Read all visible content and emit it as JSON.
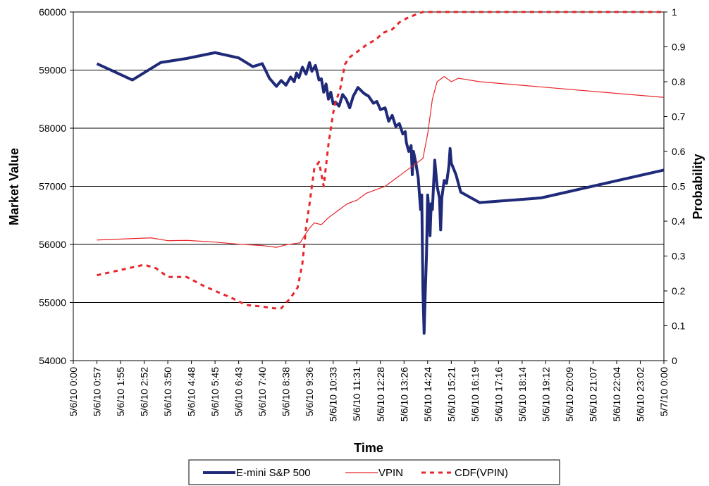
{
  "chart_data": {
    "type": "line",
    "xlabel": "Time",
    "ylabel_left": "Market Value",
    "ylabel_right": "Probability",
    "x_ticks": [
      "5/6/10 0:00",
      "5/6/10 0:57",
      "5/6/10 1:55",
      "5/6/10 2:52",
      "5/6/10 3:50",
      "5/6/10 4:48",
      "5/6/10 5:45",
      "5/6/10 6:43",
      "5/6/10 7:40",
      "5/6/10 8:38",
      "5/6/10 9:36",
      "5/6/10 10:33",
      "5/6/10 11:31",
      "5/6/10 12:28",
      "5/6/10 13:26",
      "5/6/10 14:24",
      "5/6/10 15:21",
      "5/6/10 16:19",
      "5/6/10 17:16",
      "5/6/10 18:14",
      "5/6/10 19:12",
      "5/6/10 20:09",
      "5/6/10 21:07",
      "5/6/10 22:04",
      "5/6/10 23:02",
      "5/7/10 0:00"
    ],
    "y_left_ticks": [
      54000,
      55000,
      56000,
      57000,
      58000,
      59000,
      60000
    ],
    "y_left_lim": [
      54000,
      60000
    ],
    "y_right_ticks": [
      0,
      0.1,
      0.2,
      0.3,
      0.4,
      0.5,
      0.6,
      0.7,
      0.8,
      0.9,
      1
    ],
    "y_right_lim": [
      0,
      1
    ],
    "grid": "horizontal",
    "legend_position": "bottom",
    "series": [
      {
        "name": "E-mini S&P 500",
        "axis": "left",
        "color": "#1f2a78",
        "style": "thick",
        "points": [
          [
            1.0,
            59110
          ],
          [
            2.5,
            58830
          ],
          [
            3.7,
            59130
          ],
          [
            4.8,
            59200
          ],
          [
            6.0,
            59300
          ],
          [
            7.0,
            59210
          ],
          [
            7.6,
            59060
          ],
          [
            8.0,
            59110
          ],
          [
            8.3,
            58860
          ],
          [
            8.6,
            58720
          ],
          [
            8.8,
            58820
          ],
          [
            9.0,
            58740
          ],
          [
            9.2,
            58880
          ],
          [
            9.35,
            58800
          ],
          [
            9.45,
            58950
          ],
          [
            9.55,
            58870
          ],
          [
            9.7,
            59050
          ],
          [
            9.85,
            58930
          ],
          [
            10.0,
            59130
          ],
          [
            10.1,
            58980
          ],
          [
            10.25,
            59080
          ],
          [
            10.4,
            58830
          ],
          [
            10.5,
            58850
          ],
          [
            10.6,
            58620
          ],
          [
            10.7,
            58760
          ],
          [
            10.8,
            58500
          ],
          [
            10.9,
            58620
          ],
          [
            11.0,
            58420
          ],
          [
            11.1,
            58450
          ],
          [
            11.25,
            58380
          ],
          [
            11.4,
            58580
          ],
          [
            11.55,
            58500
          ],
          [
            11.7,
            58350
          ],
          [
            11.85,
            58550
          ],
          [
            12.05,
            58700
          ],
          [
            12.3,
            58600
          ],
          [
            12.5,
            58550
          ],
          [
            12.7,
            58430
          ],
          [
            12.85,
            58460
          ],
          [
            13.0,
            58320
          ],
          [
            13.2,
            58350
          ],
          [
            13.35,
            58120
          ],
          [
            13.5,
            58220
          ],
          [
            13.65,
            58030
          ],
          [
            13.8,
            58080
          ],
          [
            13.95,
            57900
          ],
          [
            14.05,
            57940
          ],
          [
            14.1,
            57750
          ],
          [
            14.2,
            57600
          ],
          [
            14.3,
            57700
          ],
          [
            14.35,
            57200
          ],
          [
            14.4,
            57600
          ],
          [
            14.5,
            57400
          ],
          [
            14.6,
            57150
          ],
          [
            14.7,
            56600
          ],
          [
            14.75,
            56850
          ],
          [
            14.8,
            55200
          ],
          [
            14.85,
            54470
          ],
          [
            14.9,
            55200
          ],
          [
            14.95,
            55800
          ],
          [
            15.0,
            56850
          ],
          [
            15.05,
            56600
          ],
          [
            15.1,
            56150
          ],
          [
            15.15,
            56700
          ],
          [
            15.2,
            56600
          ],
          [
            15.3,
            57450
          ],
          [
            15.4,
            57000
          ],
          [
            15.5,
            56800
          ],
          [
            15.55,
            56250
          ],
          [
            15.6,
            56800
          ],
          [
            15.7,
            57100
          ],
          [
            15.8,
            57050
          ],
          [
            15.9,
            57350
          ],
          [
            15.95,
            57650
          ],
          [
            16.0,
            57400
          ],
          [
            16.1,
            57300
          ],
          [
            16.2,
            57200
          ],
          [
            16.3,
            57050
          ],
          [
            16.4,
            56900
          ],
          [
            17.2,
            56720
          ],
          [
            19.8,
            56800
          ],
          [
            25.0,
            57280
          ]
        ]
      },
      {
        "name": "VPIN",
        "axis": "right",
        "color": "#e8262a",
        "style": "thin",
        "points": [
          [
            1.0,
            0.346
          ],
          [
            2.5,
            0.35
          ],
          [
            3.3,
            0.352
          ],
          [
            4.0,
            0.344
          ],
          [
            4.8,
            0.345
          ],
          [
            6.0,
            0.34
          ],
          [
            7.0,
            0.334
          ],
          [
            8.0,
            0.33
          ],
          [
            8.6,
            0.325
          ],
          [
            9.0,
            0.332
          ],
          [
            9.6,
            0.338
          ],
          [
            9.8,
            0.36
          ],
          [
            10.0,
            0.38
          ],
          [
            10.2,
            0.395
          ],
          [
            10.5,
            0.39
          ],
          [
            10.8,
            0.41
          ],
          [
            11.2,
            0.43
          ],
          [
            11.6,
            0.45
          ],
          [
            12.0,
            0.46
          ],
          [
            12.4,
            0.48
          ],
          [
            12.8,
            0.49
          ],
          [
            13.2,
            0.5
          ],
          [
            13.6,
            0.52
          ],
          [
            14.0,
            0.54
          ],
          [
            14.4,
            0.56
          ],
          [
            14.8,
            0.58
          ],
          [
            15.0,
            0.65
          ],
          [
            15.2,
            0.75
          ],
          [
            15.4,
            0.8
          ],
          [
            15.7,
            0.815
          ],
          [
            16.0,
            0.8
          ],
          [
            16.3,
            0.81
          ],
          [
            17.2,
            0.8
          ],
          [
            19.8,
            0.785
          ],
          [
            25.0,
            0.755
          ]
        ]
      },
      {
        "name": "CDF(VPIN)",
        "axis": "right",
        "color": "#e8262a",
        "style": "dashed",
        "points": [
          [
            1.0,
            0.245
          ],
          [
            2.0,
            0.26
          ],
          [
            3.0,
            0.275
          ],
          [
            3.5,
            0.265
          ],
          [
            4.0,
            0.24
          ],
          [
            4.8,
            0.24
          ],
          [
            5.5,
            0.215
          ],
          [
            6.0,
            0.2
          ],
          [
            6.7,
            0.18
          ],
          [
            7.3,
            0.16
          ],
          [
            8.0,
            0.155
          ],
          [
            8.5,
            0.15
          ],
          [
            8.8,
            0.15
          ],
          [
            9.2,
            0.18
          ],
          [
            9.5,
            0.21
          ],
          [
            9.7,
            0.28
          ],
          [
            9.85,
            0.38
          ],
          [
            10.0,
            0.45
          ],
          [
            10.2,
            0.55
          ],
          [
            10.4,
            0.57
          ],
          [
            10.6,
            0.5
          ],
          [
            10.8,
            0.62
          ],
          [
            11.0,
            0.71
          ],
          [
            11.1,
            0.74
          ],
          [
            11.3,
            0.78
          ],
          [
            11.5,
            0.85
          ],
          [
            11.7,
            0.87
          ],
          [
            11.9,
            0.88
          ],
          [
            12.1,
            0.89
          ],
          [
            12.5,
            0.91
          ],
          [
            12.8,
            0.92
          ],
          [
            13.1,
            0.94
          ],
          [
            13.5,
            0.95
          ],
          [
            13.8,
            0.97
          ],
          [
            14.2,
            0.985
          ],
          [
            14.8,
            1.0
          ],
          [
            16.0,
            1.0
          ],
          [
            18.0,
            1.0
          ],
          [
            20.0,
            1.0
          ],
          [
            22.0,
            1.0
          ],
          [
            25.0,
            1.0
          ]
        ]
      }
    ]
  }
}
